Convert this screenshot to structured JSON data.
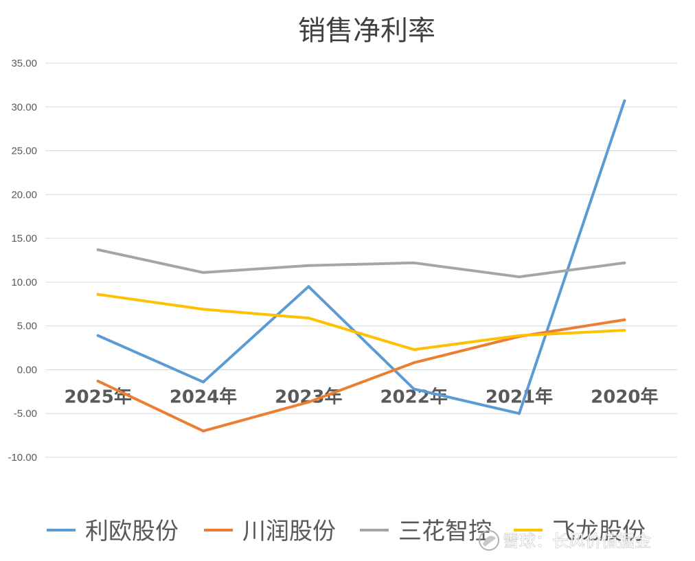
{
  "watermark": {
    "text": "雪球：长风价值掘金",
    "icon": "snowball-logo-icon"
  },
  "chart_data": {
    "type": "line",
    "title": "销售净利率",
    "xlabel": "",
    "ylabel": "",
    "categories": [
      "2025年",
      "2024年",
      "2023年",
      "2022年",
      "2021年",
      "2020年"
    ],
    "ylim": [
      -10,
      35
    ],
    "yticks": [
      "35.00",
      "30.00",
      "25.00",
      "20.00",
      "15.00",
      "10.00",
      "5.00",
      "0.00",
      "-5.00",
      "-10.00"
    ],
    "ytick_values": [
      35,
      30,
      25,
      20,
      15,
      10,
      5,
      0,
      -5,
      -10
    ],
    "grid": true,
    "legend_position": "bottom",
    "series": [
      {
        "name": "利欧股份",
        "color": "#5B9BD5",
        "values": [
          3.9,
          -1.4,
          9.5,
          -2.2,
          -5.0,
          30.7
        ]
      },
      {
        "name": "川润股份",
        "color": "#ED7D31",
        "values": [
          -1.3,
          -7.0,
          -3.7,
          0.8,
          3.8,
          5.7
        ]
      },
      {
        "name": "三花智控",
        "color": "#A5A5A5",
        "values": [
          13.7,
          11.1,
          11.9,
          12.2,
          10.6,
          12.2
        ]
      },
      {
        "name": "飞龙股份",
        "color": "#FFC000",
        "values": [
          8.6,
          6.9,
          5.9,
          2.3,
          3.9,
          4.5
        ]
      }
    ]
  }
}
